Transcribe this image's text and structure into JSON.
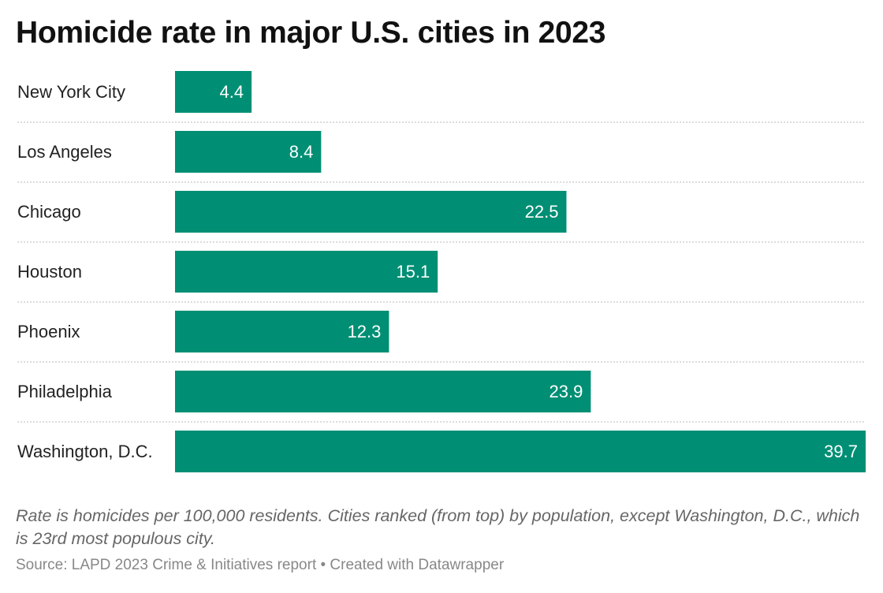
{
  "chart_data": {
    "type": "bar",
    "orientation": "horizontal",
    "title": "Homicide rate in major U.S. cities in 2023",
    "categories": [
      "New York City",
      "Los Angeles",
      "Chicago",
      "Houston",
      "Phoenix",
      "Philadelphia",
      "Washington, D.C."
    ],
    "values": [
      4.4,
      8.4,
      22.5,
      15.1,
      12.3,
      23.9,
      39.7
    ],
    "value_labels": [
      "4.4",
      "8.4",
      "22.5",
      "15.1",
      "12.3",
      "23.9",
      "39.7"
    ],
    "xlim": [
      0,
      39.7
    ],
    "xlabel": "",
    "ylabel": "",
    "bar_color": "#008f74",
    "separator_color": "#c8c8c8",
    "notes": "Rate is homicides per 100,000 residents. Cities ranked (from top) by population, except Washington, D.C., which is 23rd most populous city.",
    "source": "Source: LAPD 2023 Crime & Initiatives report • Created with Datawrapper"
  }
}
